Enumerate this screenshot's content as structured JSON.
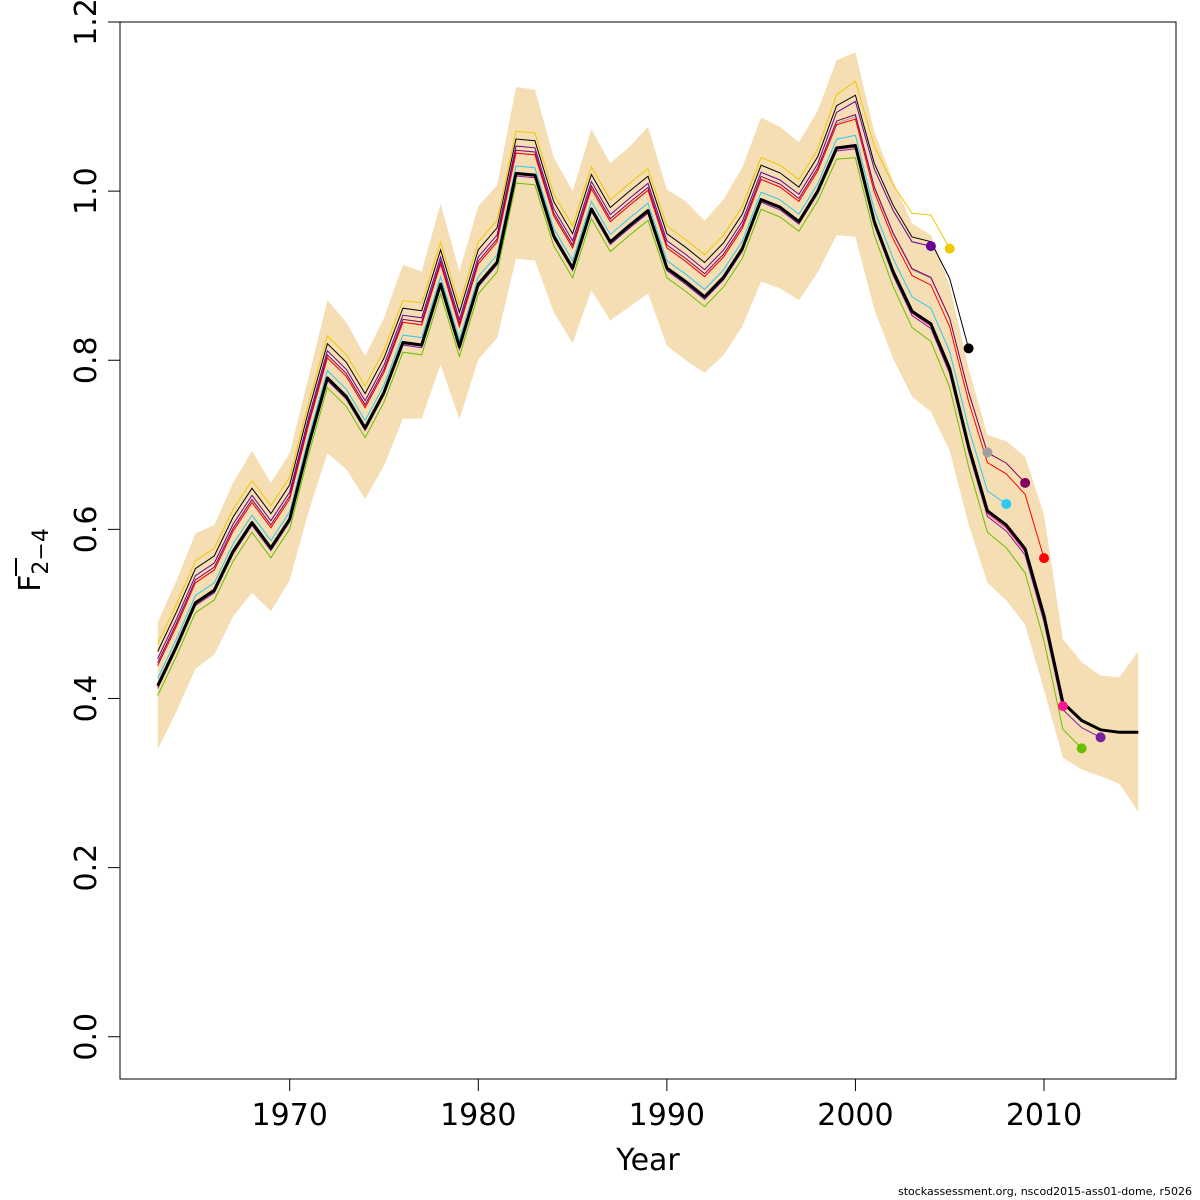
{
  "chart_data": {
    "type": "line",
    "xlabel": "Year",
    "ylabel_main": "F",
    "ylabel_sub": "2−4",
    "xlim": [
      1961,
      2017
    ],
    "ylim": [
      -0.05,
      1.2
    ],
    "x_ticks": [
      1970,
      1980,
      1990,
      2000,
      2010
    ],
    "y_ticks": [
      0.0,
      0.2,
      0.4,
      0.6,
      0.8,
      1.0,
      1.2
    ],
    "y_tick_labels": [
      "0.0",
      "0.2",
      "0.4",
      "0.6",
      "0.8",
      "1.0",
      "1.2"
    ],
    "band_color": "#f5deb3",
    "years": [
      1963,
      1964,
      1965,
      1966,
      1967,
      1968,
      1969,
      1970,
      1971,
      1972,
      1973,
      1974,
      1975,
      1976,
      1977,
      1978,
      1979,
      1980,
      1981,
      1982,
      1983,
      1984,
      1985,
      1986,
      1987,
      1988,
      1989,
      1990,
      1991,
      1992,
      1993,
      1994,
      1995,
      1996,
      1997,
      1998,
      1999,
      2000,
      2001,
      2002,
      2003,
      2004,
      2005,
      2006,
      2007,
      2008,
      2009,
      2010,
      2011,
      2012,
      2013,
      2014,
      2015
    ],
    "band_upper": [
      0.49,
      0.54,
      0.595,
      0.605,
      0.655,
      0.693,
      0.655,
      0.69,
      0.78,
      0.871,
      0.845,
      0.805,
      0.85,
      0.913,
      0.905,
      0.985,
      0.905,
      0.982,
      1.007,
      1.123,
      1.12,
      1.04,
      1.0,
      1.073,
      1.033,
      1.052,
      1.076,
      1.002,
      0.988,
      0.965,
      0.99,
      1.028,
      1.087,
      1.076,
      1.058,
      1.095,
      1.155,
      1.164,
      1.07,
      1.012,
      0.962,
      0.948,
      0.888,
      0.79,
      0.712,
      0.704,
      0.686,
      0.617,
      0.47,
      0.443,
      0.427,
      0.425,
      0.456
    ],
    "band_lower": [
      0.34,
      0.385,
      0.435,
      0.452,
      0.497,
      0.525,
      0.503,
      0.54,
      0.621,
      0.69,
      0.671,
      0.636,
      0.675,
      0.731,
      0.731,
      0.795,
      0.73,
      0.801,
      0.826,
      0.92,
      0.918,
      0.857,
      0.82,
      0.883,
      0.847,
      0.863,
      0.879,
      0.817,
      0.8,
      0.785,
      0.806,
      0.84,
      0.893,
      0.885,
      0.871,
      0.904,
      0.948,
      0.946,
      0.86,
      0.802,
      0.757,
      0.739,
      0.693,
      0.606,
      0.537,
      0.516,
      0.487,
      0.41,
      0.33,
      0.316,
      0.308,
      0.299,
      0.266
    ],
    "final_estimate": {
      "name": "2015",
      "color": "#000000",
      "values": [
        0.415,
        0.462,
        0.513,
        0.528,
        0.574,
        0.608,
        0.578,
        0.612,
        0.7,
        0.779,
        0.757,
        0.72,
        0.762,
        0.821,
        0.818,
        0.89,
        0.816,
        0.89,
        0.916,
        1.021,
        1.019,
        0.947,
        0.909,
        0.979,
        0.94,
        0.959,
        0.977,
        0.909,
        0.893,
        0.875,
        0.898,
        0.932,
        0.99,
        0.981,
        0.964,
        1.0,
        1.051,
        1.054,
        0.964,
        0.905,
        0.858,
        0.843,
        0.79,
        0.698,
        0.622,
        0.605,
        0.577,
        0.498,
        0.395,
        0.374,
        0.363,
        0.36,
        0.36
      ]
    },
    "retro_series": [
      {
        "name": "2004",
        "color": "#660099",
        "end_year": 2004,
        "end_value": 0.935
      },
      {
        "name": "2005",
        "color": "#f0c800",
        "end_year": 2005,
        "end_value": 0.932
      },
      {
        "name": "2006",
        "color": "#000000",
        "end_year": 2006,
        "end_value": 0.814
      },
      {
        "name": "2007",
        "color": "#a0a0a0",
        "end_year": 2007,
        "end_value": 0.691
      },
      {
        "name": "2008",
        "color": "#2ec8f0",
        "end_year": 2008,
        "end_value": 0.63
      },
      {
        "name": "2009",
        "color": "#800060",
        "end_year": 2009,
        "end_value": 0.655
      },
      {
        "name": "2010",
        "color": "#ff0000",
        "end_year": 2010,
        "end_value": 0.566
      },
      {
        "name": "2011",
        "color": "#ff1493",
        "end_year": 2011,
        "end_value": 0.391
      },
      {
        "name": "2012",
        "color": "#66c000",
        "end_year": 2012,
        "end_value": 0.341
      },
      {
        "name": "2013",
        "color": "#7a1fa0",
        "end_year": 2013,
        "end_value": 0.354
      }
    ]
  },
  "footer": {
    "credit": "stockassessment.org, nscod2015-ass01-dome, r5026"
  }
}
